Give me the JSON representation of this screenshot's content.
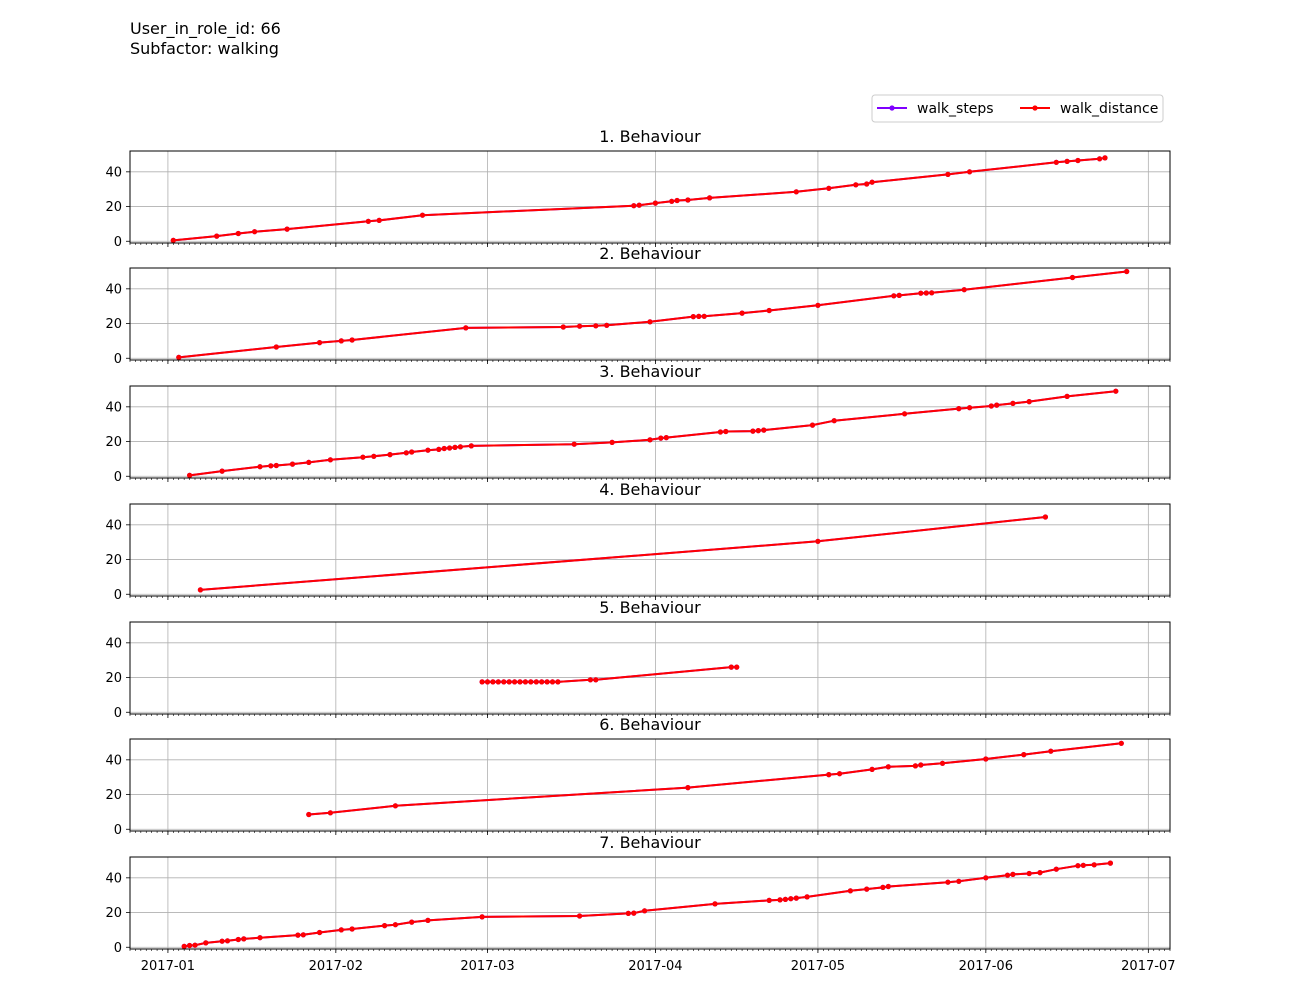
{
  "header": {
    "user_line": "User_in_role_id: 66",
    "subfactor_line": "Subfactor: walking"
  },
  "chart_data": {
    "type": "line",
    "x_axis": {
      "type": "date",
      "range": [
        "2016-12-25",
        "2017-07-05"
      ],
      "tick_dates": [
        "2017-01-01",
        "2017-02-01",
        "2017-03-01",
        "2017-04-01",
        "2017-05-01",
        "2017-06-01",
        "2017-07-01"
      ],
      "tick_labels": [
        "2017-01",
        "2017-02",
        "2017-03",
        "2017-04",
        "2017-05",
        "2017-06",
        "2017-07"
      ]
    },
    "y_axis": {
      "range": [
        -1,
        52
      ],
      "ticks": [
        0,
        20,
        40
      ]
    },
    "grid": true,
    "legend": {
      "placement": "top-right",
      "entries": [
        {
          "name": "walk_steps",
          "color": "#7f00ff"
        },
        {
          "name": "walk_distance",
          "color": "#ff0000"
        }
      ]
    },
    "series_colors": {
      "walk_steps": "#7f00ff",
      "walk_distance": "#ff0000"
    },
    "note_overlap": "walk_steps and walk_distance coincide in every panel",
    "panels": [
      {
        "title": "1. Behaviour",
        "points": [
          [
            "2017-01-02",
            0.5
          ],
          [
            "2017-01-10",
            3
          ],
          [
            "2017-01-14",
            4.5
          ],
          [
            "2017-01-17",
            5.5
          ],
          [
            "2017-01-23",
            7
          ],
          [
            "2017-02-07",
            11.5
          ],
          [
            "2017-02-09",
            12
          ],
          [
            "2017-02-17",
            15
          ],
          [
            "2017-03-28",
            20.5
          ],
          [
            "2017-03-29",
            20.8
          ],
          [
            "2017-04-01",
            22
          ],
          [
            "2017-04-04",
            23
          ],
          [
            "2017-04-05",
            23.5
          ],
          [
            "2017-04-07",
            23.8
          ],
          [
            "2017-04-11",
            25
          ],
          [
            "2017-04-27",
            28.5
          ],
          [
            "2017-05-03",
            30.5
          ],
          [
            "2017-05-08",
            32.5
          ],
          [
            "2017-05-10",
            33
          ],
          [
            "2017-05-11",
            34
          ],
          [
            "2017-05-25",
            38.5
          ],
          [
            "2017-05-29",
            40
          ],
          [
            "2017-06-14",
            45.5
          ],
          [
            "2017-06-16",
            46
          ],
          [
            "2017-06-18",
            46.5
          ],
          [
            "2017-06-22",
            47.5
          ],
          [
            "2017-06-23",
            48
          ]
        ]
      },
      {
        "title": "2. Behaviour",
        "points": [
          [
            "2017-01-03",
            0.5
          ],
          [
            "2017-01-21",
            6.5
          ],
          [
            "2017-01-29",
            9
          ],
          [
            "2017-02-02",
            10
          ],
          [
            "2017-02-04",
            10.5
          ],
          [
            "2017-02-25",
            17.5
          ],
          [
            "2017-03-15",
            18
          ],
          [
            "2017-03-18",
            18.5
          ],
          [
            "2017-03-21",
            18.7
          ],
          [
            "2017-03-23",
            19
          ],
          [
            "2017-03-31",
            21
          ],
          [
            "2017-04-08",
            24
          ],
          [
            "2017-04-09",
            24.1
          ],
          [
            "2017-04-10",
            24.2
          ],
          [
            "2017-04-17",
            26
          ],
          [
            "2017-04-22",
            27.5
          ],
          [
            "2017-05-01",
            30.5
          ],
          [
            "2017-05-15",
            36
          ],
          [
            "2017-05-16",
            36.2
          ],
          [
            "2017-05-20",
            37.5
          ],
          [
            "2017-05-21",
            37.6
          ],
          [
            "2017-05-22",
            37.7
          ],
          [
            "2017-05-28",
            39.5
          ],
          [
            "2017-06-17",
            46.5
          ],
          [
            "2017-06-27",
            50
          ]
        ]
      },
      {
        "title": "3. Behaviour",
        "points": [
          [
            "2017-01-05",
            0.5
          ],
          [
            "2017-01-11",
            3
          ],
          [
            "2017-01-18",
            5.5
          ],
          [
            "2017-01-20",
            6
          ],
          [
            "2017-01-21",
            6.2
          ],
          [
            "2017-01-24",
            7
          ],
          [
            "2017-01-27",
            8
          ],
          [
            "2017-01-31",
            9.5
          ],
          [
            "2017-02-06",
            11
          ],
          [
            "2017-02-08",
            11.5
          ],
          [
            "2017-02-11",
            12.5
          ],
          [
            "2017-02-14",
            13.5
          ],
          [
            "2017-02-15",
            14
          ],
          [
            "2017-02-18",
            15
          ],
          [
            "2017-02-20",
            15.5
          ],
          [
            "2017-02-21",
            16
          ],
          [
            "2017-02-22",
            16.3
          ],
          [
            "2017-02-23",
            16.6
          ],
          [
            "2017-02-24",
            17
          ],
          [
            "2017-02-26",
            17.5
          ],
          [
            "2017-03-17",
            18.5
          ],
          [
            "2017-03-24",
            19.5
          ],
          [
            "2017-03-31",
            21
          ],
          [
            "2017-04-02",
            22
          ],
          [
            "2017-04-03",
            22.3
          ],
          [
            "2017-04-13",
            25.5
          ],
          [
            "2017-04-14",
            25.8
          ],
          [
            "2017-04-19",
            26
          ],
          [
            "2017-04-20",
            26.3
          ],
          [
            "2017-04-21",
            26.6
          ],
          [
            "2017-04-30",
            29.5
          ],
          [
            "2017-05-04",
            32
          ],
          [
            "2017-05-17",
            36
          ],
          [
            "2017-05-27",
            39
          ],
          [
            "2017-05-29",
            39.5
          ],
          [
            "2017-06-02",
            40.5
          ],
          [
            "2017-06-03",
            41
          ],
          [
            "2017-06-06",
            42
          ],
          [
            "2017-06-09",
            43
          ],
          [
            "2017-06-16",
            46
          ],
          [
            "2017-06-25",
            49
          ]
        ]
      },
      {
        "title": "4. Behaviour",
        "points": [
          [
            "2017-01-07",
            2.5
          ],
          [
            "2017-05-01",
            30.5
          ],
          [
            "2017-06-12",
            44.5
          ]
        ]
      },
      {
        "title": "5. Behaviour",
        "points": [
          [
            "2017-02-28",
            17.5
          ],
          [
            "2017-03-01",
            17.5
          ],
          [
            "2017-03-02",
            17.5
          ],
          [
            "2017-03-03",
            17.5
          ],
          [
            "2017-03-04",
            17.5
          ],
          [
            "2017-03-05",
            17.5
          ],
          [
            "2017-03-06",
            17.5
          ],
          [
            "2017-03-07",
            17.5
          ],
          [
            "2017-03-08",
            17.5
          ],
          [
            "2017-03-09",
            17.5
          ],
          [
            "2017-03-10",
            17.5
          ],
          [
            "2017-03-11",
            17.5
          ],
          [
            "2017-03-12",
            17.5
          ],
          [
            "2017-03-13",
            17.5
          ],
          [
            "2017-03-14",
            17.5
          ],
          [
            "2017-03-20",
            18.7
          ],
          [
            "2017-03-21",
            18.7
          ],
          [
            "2017-04-15",
            26
          ],
          [
            "2017-04-16",
            26
          ]
        ]
      },
      {
        "title": "6. Behaviour",
        "points": [
          [
            "2017-01-27",
            8.5
          ],
          [
            "2017-01-31",
            9.5
          ],
          [
            "2017-02-12",
            13.5
          ],
          [
            "2017-04-07",
            24
          ],
          [
            "2017-05-03",
            31.5
          ],
          [
            "2017-05-05",
            32
          ],
          [
            "2017-05-11",
            34.5
          ],
          [
            "2017-05-14",
            36
          ],
          [
            "2017-05-19",
            36.5
          ],
          [
            "2017-05-20",
            37
          ],
          [
            "2017-05-24",
            38
          ],
          [
            "2017-06-01",
            40.5
          ],
          [
            "2017-06-08",
            43
          ],
          [
            "2017-06-13",
            45
          ],
          [
            "2017-06-26",
            49.5
          ]
        ]
      },
      {
        "title": "7. Behaviour",
        "points": [
          [
            "2017-01-04",
            0.5
          ],
          [
            "2017-01-05",
            1
          ],
          [
            "2017-01-06",
            1.2
          ],
          [
            "2017-01-08",
            2.5
          ],
          [
            "2017-01-11",
            3.5
          ],
          [
            "2017-01-12",
            3.7
          ],
          [
            "2017-01-14",
            4.5
          ],
          [
            "2017-01-15",
            4.8
          ],
          [
            "2017-01-18",
            5.5
          ],
          [
            "2017-01-25",
            7
          ],
          [
            "2017-01-26",
            7.2
          ],
          [
            "2017-01-29",
            8.5
          ],
          [
            "2017-02-02",
            10
          ],
          [
            "2017-02-04",
            10.5
          ],
          [
            "2017-02-10",
            12.5
          ],
          [
            "2017-02-12",
            13
          ],
          [
            "2017-02-15",
            14.5
          ],
          [
            "2017-02-18",
            15.5
          ],
          [
            "2017-02-28",
            17.5
          ],
          [
            "2017-03-18",
            18
          ],
          [
            "2017-03-27",
            19.5
          ],
          [
            "2017-03-28",
            19.7
          ],
          [
            "2017-03-30",
            21
          ],
          [
            "2017-04-12",
            25
          ],
          [
            "2017-04-22",
            27
          ],
          [
            "2017-04-24",
            27.3
          ],
          [
            "2017-04-25",
            27.6
          ],
          [
            "2017-04-26",
            28
          ],
          [
            "2017-04-27",
            28.3
          ],
          [
            "2017-04-29",
            29
          ],
          [
            "2017-05-07",
            32.5
          ],
          [
            "2017-05-10",
            33.5
          ],
          [
            "2017-05-13",
            34.5
          ],
          [
            "2017-05-14",
            35
          ],
          [
            "2017-05-25",
            37.5
          ],
          [
            "2017-05-27",
            38
          ],
          [
            "2017-06-01",
            40
          ],
          [
            "2017-06-05",
            41.5
          ],
          [
            "2017-06-06",
            42
          ],
          [
            "2017-06-09",
            42.5
          ],
          [
            "2017-06-11",
            43
          ],
          [
            "2017-06-14",
            45
          ],
          [
            "2017-06-18",
            47
          ],
          [
            "2017-06-19",
            47.2
          ],
          [
            "2017-06-21",
            47.5
          ],
          [
            "2017-06-24",
            48.5
          ]
        ]
      }
    ]
  }
}
